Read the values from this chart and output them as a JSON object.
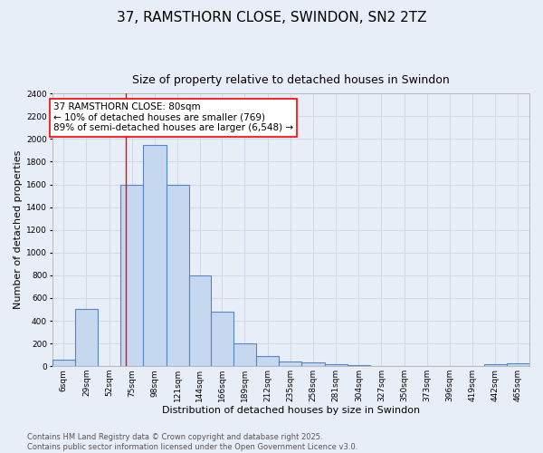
{
  "title": "37, RAMSTHORN CLOSE, SWINDON, SN2 2TZ",
  "subtitle": "Size of property relative to detached houses in Swindon",
  "xlabel": "Distribution of detached houses by size in Swindon",
  "ylabel": "Number of detached properties",
  "bar_color": "#c5d8f0",
  "bar_edge_color": "#5585c5",
  "background_color": "#e8eef8",
  "grid_color": "#d0d8e8",
  "annotation_box_text": "37 RAMSTHORN CLOSE: 80sqm\n← 10% of detached houses are smaller (769)\n89% of semi-detached houses are larger (6,548) →",
  "red_line_x": 80,
  "categories": [
    "6sqm",
    "29sqm",
    "52sqm",
    "75sqm",
    "98sqm",
    "121sqm",
    "144sqm",
    "166sqm",
    "189sqm",
    "212sqm",
    "235sqm",
    "258sqm",
    "281sqm",
    "304sqm",
    "327sqm",
    "350sqm",
    "373sqm",
    "396sqm",
    "419sqm",
    "442sqm",
    "465sqm"
  ],
  "bin_left_edges": [
    6,
    29,
    52,
    75,
    98,
    121,
    144,
    166,
    189,
    212,
    235,
    258,
    281,
    304,
    327,
    350,
    373,
    396,
    419,
    442,
    465
  ],
  "bin_width": 23,
  "bar_heights": [
    55,
    500,
    0,
    1600,
    1950,
    1600,
    800,
    480,
    200,
    90,
    40,
    30,
    15,
    10,
    0,
    0,
    0,
    0,
    0,
    20,
    25
  ],
  "ylim": [
    0,
    2400
  ],
  "yticks": [
    0,
    200,
    400,
    600,
    800,
    1000,
    1200,
    1400,
    1600,
    1800,
    2000,
    2200,
    2400
  ],
  "footer": "Contains HM Land Registry data © Crown copyright and database right 2025.\nContains public sector information licensed under the Open Government Licence v3.0.",
  "title_fontsize": 11,
  "subtitle_fontsize": 9,
  "axis_label_fontsize": 8,
  "tick_fontsize": 6.5,
  "annotation_fontsize": 7.5,
  "footer_fontsize": 6
}
